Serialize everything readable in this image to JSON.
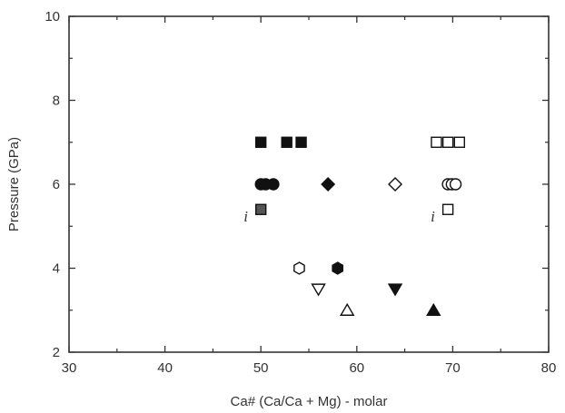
{
  "chart_data": {
    "type": "scatter",
    "title": "",
    "xlabel": "Ca# (Ca/Ca + Mg) - molar",
    "ylabel": "Pressure (GPa)",
    "xlim": [
      30,
      80
    ],
    "ylim": [
      2,
      10
    ],
    "x_ticks": [
      "30",
      "40",
      "50",
      "60",
      "70",
      "80"
    ],
    "y_ticks": [
      "2",
      "4",
      "6",
      "8",
      "10"
    ],
    "grid": false,
    "legend": "none",
    "colors": {
      "filled": "#111111",
      "open": "#ffffff",
      "stroke": "#111111",
      "filled_i": "#555555",
      "axis": "#333333"
    },
    "series": [
      {
        "marker": "square",
        "fill": "filled",
        "x": [
          50,
          52.7,
          54.2
        ],
        "y": [
          7,
          7,
          7
        ]
      },
      {
        "marker": "circle",
        "fill": "filled",
        "x": [
          50,
          50.5,
          51.3
        ],
        "y": [
          6,
          6,
          6
        ]
      },
      {
        "marker": "diamond",
        "fill": "filled",
        "x": [
          57
        ],
        "y": [
          6
        ]
      },
      {
        "marker": "hexagon",
        "fill": "filled",
        "x": [
          58
        ],
        "y": [
          4
        ]
      },
      {
        "marker": "triangle-down",
        "fill": "filled",
        "x": [
          64
        ],
        "y": [
          3.5
        ]
      },
      {
        "marker": "triangle-up",
        "fill": "filled",
        "x": [
          68
        ],
        "y": [
          3
        ]
      },
      {
        "marker": "square",
        "fill": "filled-grey",
        "x": [
          50
        ],
        "y": [
          5.4
        ],
        "label": "i"
      },
      {
        "marker": "square",
        "fill": "open",
        "x": [
          68.3,
          69.5,
          70.7
        ],
        "y": [
          7,
          7,
          7
        ]
      },
      {
        "marker": "circle",
        "fill": "open",
        "x": [
          69.5,
          69.9,
          70.3
        ],
        "y": [
          6,
          6,
          6
        ]
      },
      {
        "marker": "diamond",
        "fill": "open",
        "x": [
          64
        ],
        "y": [
          6
        ]
      },
      {
        "marker": "hexagon",
        "fill": "open",
        "x": [
          54
        ],
        "y": [
          4
        ]
      },
      {
        "marker": "triangle-down",
        "fill": "open",
        "x": [
          56
        ],
        "y": [
          3.5
        ]
      },
      {
        "marker": "triangle-up",
        "fill": "open",
        "x": [
          59
        ],
        "y": [
          3
        ]
      },
      {
        "marker": "square",
        "fill": "open",
        "x": [
          69.5
        ],
        "y": [
          5.4
        ],
        "label": "i"
      }
    ]
  }
}
